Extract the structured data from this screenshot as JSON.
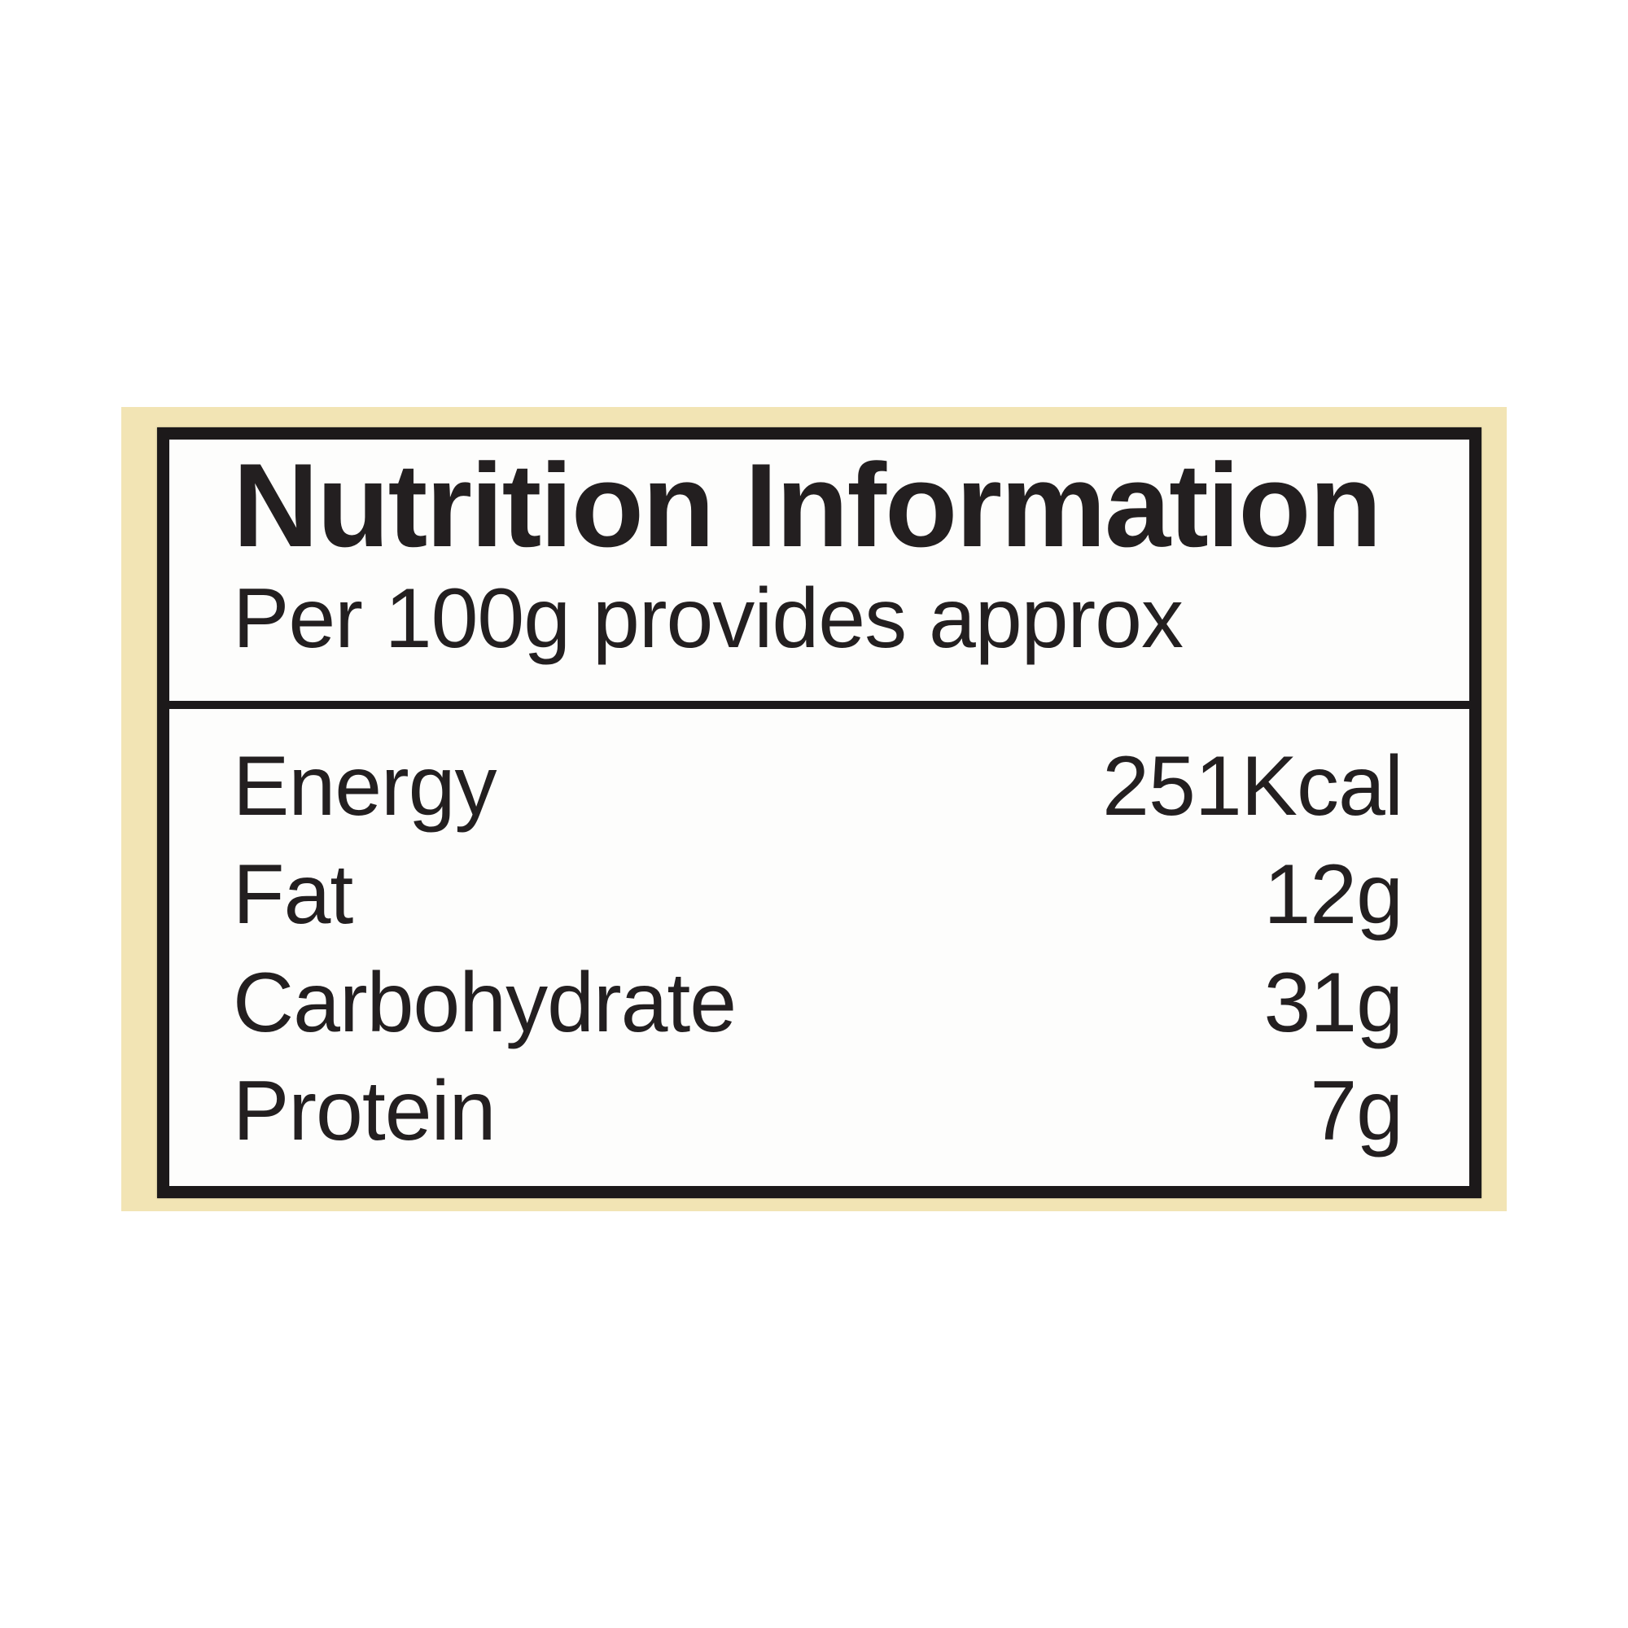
{
  "label": {
    "title": "Nutrition Information",
    "subtitle": "Per 100g provides approx",
    "rows": [
      {
        "name": "Energy",
        "value": "251Kcal"
      },
      {
        "name": "Fat",
        "value": "12g"
      },
      {
        "name": "Carbohydrate",
        "value": "31g"
      },
      {
        "name": "Protein",
        "value": "7g"
      }
    ],
    "colors": {
      "background": "#f2e4b4",
      "panel": "#fdfdfc",
      "border": "#1c191a",
      "text": "#231f20",
      "page": "#ffffff"
    }
  }
}
